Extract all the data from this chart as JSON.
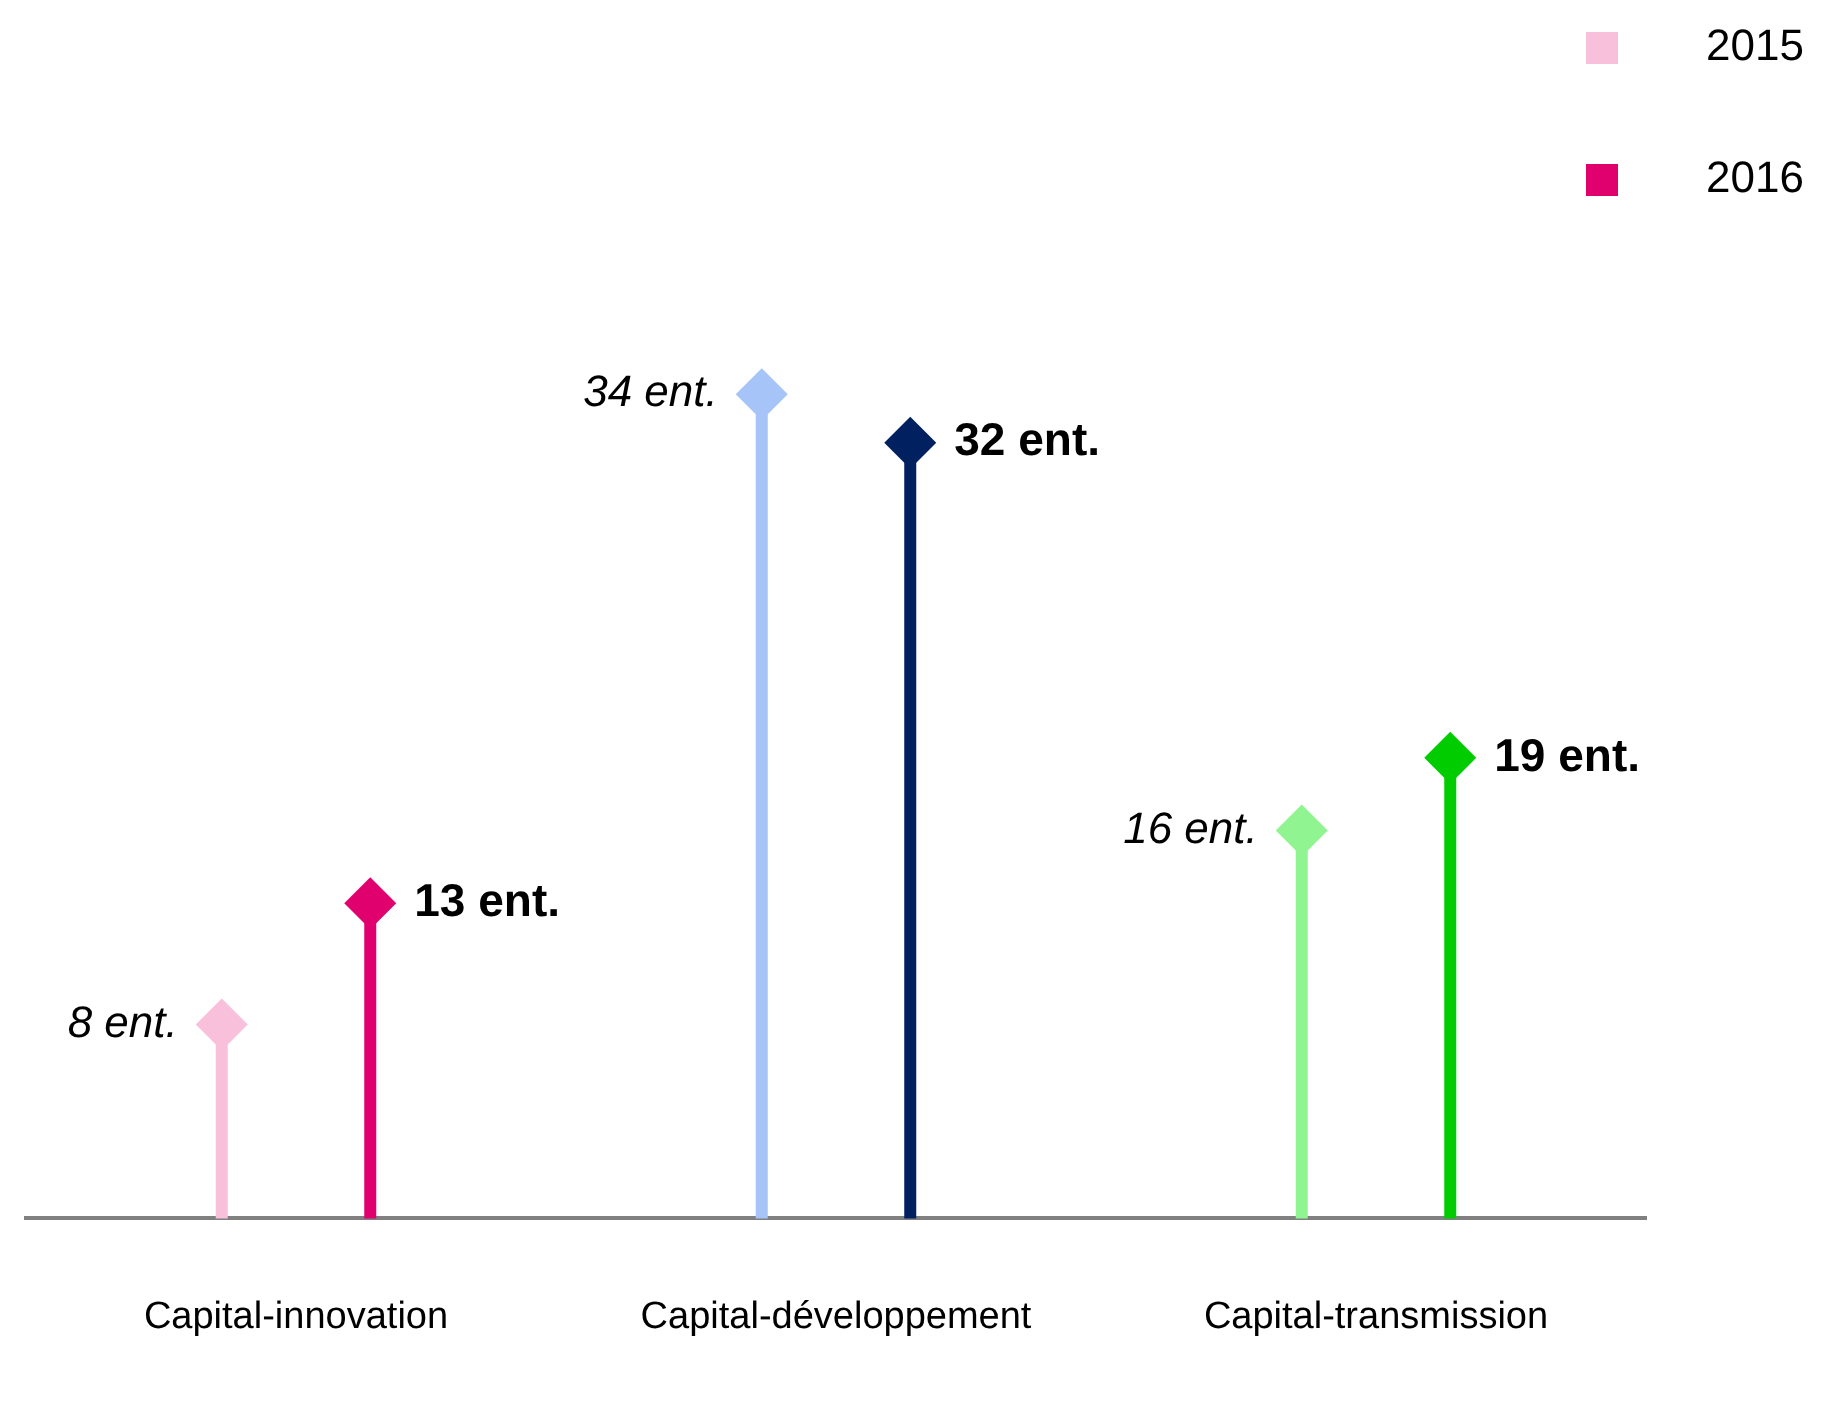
{
  "chart_data": {
    "type": "lollipop",
    "categories": [
      "Capital-innovation",
      "Capital-développement",
      "Capital-transmission"
    ],
    "series": [
      {
        "name": "2015",
        "color": "#f9c0dc",
        "colors": [
          "#f9c0dc",
          "#a6c4f7",
          "#90f590"
        ],
        "values": [
          8,
          34,
          16
        ],
        "value_labels": [
          "8 ent.",
          "34 ent.",
          "16 ent."
        ]
      },
      {
        "name": "2016",
        "color": "#e0006e",
        "colors": [
          "#e0006e",
          "#002060",
          "#00cc00"
        ],
        "values": [
          13,
          32,
          19
        ],
        "value_labels": [
          "13 ent.",
          "32 ent.",
          "19 ent."
        ]
      }
    ],
    "legend": "top right",
    "marker": "diamond",
    "tick_labels": "x",
    "grid": false
  }
}
